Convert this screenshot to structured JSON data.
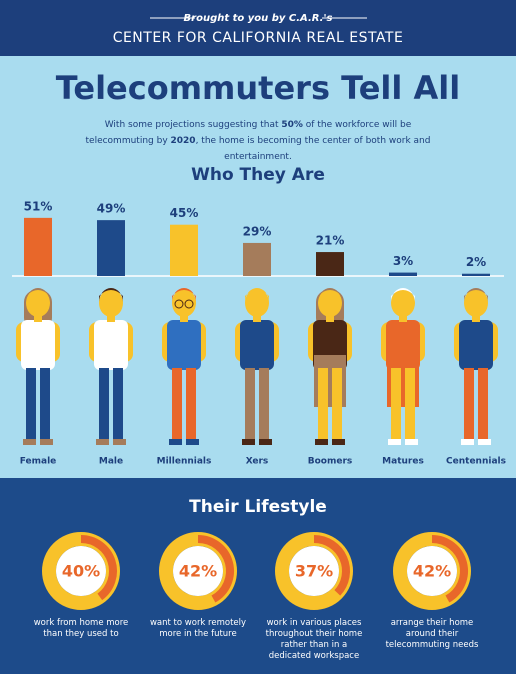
{
  "header": {
    "credit": "Brought to you by C.A.R.'s",
    "org": "CENTER FOR CALIFORNIA REAL ESTATE"
  },
  "title": "Telecommuters Tell All",
  "subtitle": [
    "With some projections suggesting that ",
    "50%",
    " of the workforce will be telecommuting by ",
    "2020",
    ", the home is becoming the center of both work and entertainment."
  ],
  "chart_data": [
    {
      "type": "bar",
      "title": "Who They Are",
      "categories": [
        "Female",
        "Male",
        "Millennials",
        "Xers",
        "Boomers",
        "Matures",
        "Centennials"
      ],
      "values": [
        51,
        49,
        45,
        29,
        21,
        3,
        2
      ],
      "value_labels": [
        "51%",
        "49%",
        "45%",
        "29%",
        "21%",
        "3%",
        "2%"
      ],
      "colors": [
        "#e8672a",
        "#1e4a8a",
        "#f8c22a",
        "#a57c5b",
        "#4a2716",
        "#1e4a8a",
        "#1e4a8a"
      ]
    },
    {
      "type": "donut",
      "title": "Their Lifestyle",
      "values": [
        40,
        42,
        37,
        42
      ],
      "value_labels": [
        "40%",
        "42%",
        "37%",
        "42%"
      ],
      "categories": [
        "work from home more than they used to",
        "want to work remotely more in the future",
        "work in various places throughout their home rather than in a dedicated workspace",
        "arrange their home around their telecommuting needs"
      ],
      "colors": [
        "#e8672a",
        "#f8c22a"
      ]
    }
  ]
}
